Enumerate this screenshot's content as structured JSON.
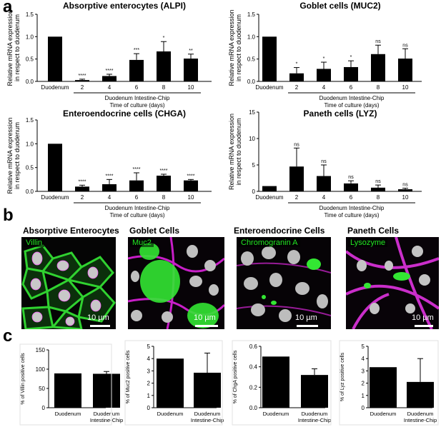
{
  "panel_labels": {
    "a": "a",
    "b": "b",
    "c": "c"
  },
  "colors": {
    "bar": "#000000",
    "green": "#33ff33",
    "magenta": "#ff33ff"
  },
  "chart_data": [
    {
      "type": "bar",
      "title": "Absorptive enterocytes (ALPI)",
      "ylabel": "Relative mRNA expression\nin respect to duodenum",
      "ylim": [
        0,
        1.5
      ],
      "yticks": [
        "0.0",
        "0.5",
        "1.0",
        "1.5"
      ],
      "categories": [
        "Duodenum",
        "2",
        "4",
        "6",
        "8",
        "10"
      ],
      "values": [
        1.0,
        0.03,
        0.12,
        0.48,
        0.67,
        0.51
      ],
      "errors": [
        0,
        0.02,
        0.04,
        0.14,
        0.22,
        0.1
      ],
      "significance": [
        "",
        "****",
        "****",
        "***",
        "*",
        "**"
      ],
      "group_label": "Duodenum Intestine-Chip",
      "xlabel": "Time of culture (days)"
    },
    {
      "type": "bar",
      "title": "Goblet cells (MUC2)",
      "ylabel": "Relative mRNA expression\nin respect to duodenum",
      "ylim": [
        0,
        1.5
      ],
      "yticks": [
        "0.0",
        "0.5",
        "1.0",
        "1.5"
      ],
      "categories": [
        "Duodenum",
        "2",
        "4",
        "6",
        "8",
        "10"
      ],
      "values": [
        1.0,
        0.18,
        0.28,
        0.32,
        0.61,
        0.51
      ],
      "errors": [
        0,
        0.13,
        0.15,
        0.14,
        0.2,
        0.22
      ],
      "significance": [
        "",
        "*",
        "*",
        "*",
        "ns",
        "ns"
      ],
      "group_label": "Duodenum Intestine-Chip",
      "xlabel": "Time of culture (days)"
    },
    {
      "type": "bar",
      "title": "Enteroendocrine cells (CHGA)",
      "ylabel": "Relative mRNA expression\nin respect to duodenum",
      "ylim": [
        0,
        1.5
      ],
      "yticks": [
        "0.0",
        "0.5",
        "1.0",
        "1.5"
      ],
      "categories": [
        "Duodenum",
        "2",
        "4",
        "6",
        "8",
        "10"
      ],
      "values": [
        1.0,
        0.1,
        0.15,
        0.23,
        0.33,
        0.23
      ],
      "errors": [
        0,
        0.03,
        0.1,
        0.16,
        0.03,
        0.02
      ],
      "significance": [
        "",
        "****",
        "****",
        "****",
        "****",
        "****"
      ],
      "group_label": "Duodenum Intestine-Chip",
      "xlabel": "Time of culture (days)"
    },
    {
      "type": "bar",
      "title": "Paneth cells (LYZ)",
      "ylabel": "Relative mRNA expression\nin respect to duodenum",
      "ylim": [
        0,
        15
      ],
      "yticks": [
        "0",
        "5",
        "10",
        "15"
      ],
      "categories": [
        "Duodenum",
        "2",
        "4",
        "6",
        "8",
        "10"
      ],
      "values": [
        1.0,
        4.7,
        2.9,
        1.5,
        0.7,
        0.4
      ],
      "errors": [
        0,
        3.5,
        2.1,
        0.5,
        0.5,
        0.2
      ],
      "significance": [
        "",
        "ns",
        "ns",
        "ns",
        "ns",
        "ns"
      ],
      "group_label": "Duodenum Intestine-Chip",
      "xlabel": "Time of culture (days)"
    },
    {
      "type": "bar",
      "ylabel": "% of Villin positive cells",
      "ylim": [
        0,
        150
      ],
      "yticks": [
        "0",
        "50",
        "100",
        "150"
      ],
      "categories": [
        "Duodenum",
        "Duodenum\nIntestine-Chip"
      ],
      "values": [
        89,
        88
      ],
      "errors": [
        0,
        6
      ]
    },
    {
      "type": "bar",
      "ylabel": "% of Muc2 positive cells",
      "ylim": [
        0,
        5
      ],
      "yticks": [
        "0",
        "1",
        "2",
        "3",
        "4",
        "5"
      ],
      "categories": [
        "Duodenum",
        "Duodenum\nIntestine-Chip"
      ],
      "values": [
        4.0,
        2.85
      ],
      "errors": [
        0,
        1.6
      ]
    },
    {
      "type": "bar",
      "ylabel": "% of ChgA positive cells",
      "ylim": [
        0,
        0.6
      ],
      "yticks": [
        "0.0",
        "0.2",
        "0.4",
        "0.6"
      ],
      "categories": [
        "Duodenum",
        "Duodenum\nIntestine-Chip"
      ],
      "values": [
        0.5,
        0.32
      ],
      "errors": [
        0,
        0.06
      ]
    },
    {
      "type": "bar",
      "ylabel": "% of Lyz positive cells",
      "ylim": [
        0,
        5
      ],
      "yticks": [
        "0",
        "1",
        "2",
        "3",
        "4",
        "5"
      ],
      "categories": [
        "Duodenum",
        "Duodenum\nIntestine-Chip"
      ],
      "values": [
        3.3,
        2.1
      ],
      "errors": [
        0,
        1.9
      ]
    }
  ],
  "micrographs": [
    {
      "title": "Absorptive Enterocytes",
      "label": "Villin",
      "scale": "10 µm"
    },
    {
      "title": "Goblet Cells",
      "label": "Muc2",
      "scale": "10 µm"
    },
    {
      "title": "Enteroendocrine Cells",
      "label": "Chromogranin A",
      "scale": "10 µm"
    },
    {
      "title": "Paneth Cells",
      "label": "Lysozyme",
      "scale": "10 µm"
    }
  ]
}
